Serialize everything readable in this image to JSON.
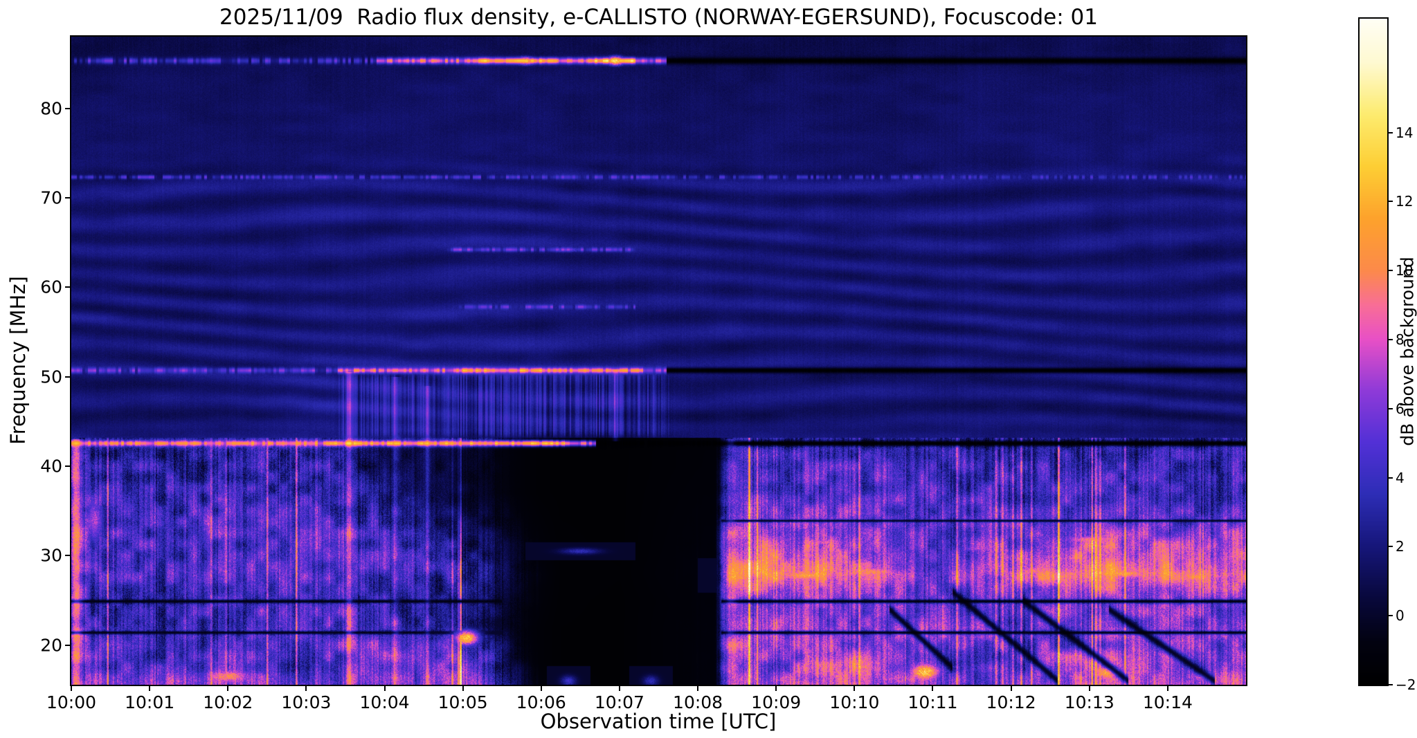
{
  "chart_data": {
    "type": "heatmap",
    "title": "2025/11/09  Radio flux density, e-CALLISTO (NORWAY-EGERSUND), Focuscode: 01",
    "date": "2025/11/09",
    "instrument": "e-CALLISTO",
    "station": "NORWAY-EGERSUND",
    "focuscode": "01",
    "xlabel": "Observation time [UTC]",
    "ylabel": "Frequency [MHz]",
    "colorbar_label": "dB above background",
    "x_range_minutes": [
      0,
      15
    ],
    "x_ticks": [
      {
        "minute": 0,
        "label": "10:00"
      },
      {
        "minute": 1,
        "label": "10:01"
      },
      {
        "minute": 2,
        "label": "10:02"
      },
      {
        "minute": 3,
        "label": "10:03"
      },
      {
        "minute": 4,
        "label": "10:04"
      },
      {
        "minute": 5,
        "label": "10:05"
      },
      {
        "minute": 6,
        "label": "10:06"
      },
      {
        "minute": 7,
        "label": "10:07"
      },
      {
        "minute": 8,
        "label": "10:08"
      },
      {
        "minute": 9,
        "label": "10:09"
      },
      {
        "minute": 10,
        "label": "10:10"
      },
      {
        "minute": 11,
        "label": "10:11"
      },
      {
        "minute": 12,
        "label": "10:12"
      },
      {
        "minute": 13,
        "label": "10:13"
      },
      {
        "minute": 14,
        "label": "10:14"
      }
    ],
    "y_range_mhz": [
      15.58,
      88.0
    ],
    "y_ticks": [
      20,
      30,
      40,
      50,
      60,
      70,
      80
    ],
    "colorbar_range": [
      -2,
      17.3
    ],
    "colorbar_ticks": [
      {
        "value": 14,
        "label": "14"
      },
      {
        "value": 12,
        "label": "12"
      },
      {
        "value": 10,
        "label": "10"
      },
      {
        "value": 8,
        "label": "8"
      },
      {
        "value": 6,
        "label": "6"
      },
      {
        "value": 4,
        "label": "4"
      },
      {
        "value": 2,
        "label": "2"
      },
      {
        "value": 0,
        "label": "0"
      },
      {
        "value": -2,
        "label": "−2"
      }
    ],
    "colormap_stops": [
      [
        -2,
        0,
        0,
        0
      ],
      [
        -0.8,
        2,
        2,
        16
      ],
      [
        0.5,
        8,
        8,
        60
      ],
      [
        2,
        22,
        22,
        122
      ],
      [
        3.5,
        45,
        45,
        182
      ],
      [
        5,
        82,
        48,
        214
      ],
      [
        6.5,
        142,
        58,
        216
      ],
      [
        8,
        232,
        80,
        198
      ],
      [
        9,
        248,
        110,
        150
      ],
      [
        10,
        252,
        138,
        74
      ],
      [
        11.5,
        253,
        162,
        44
      ],
      [
        13,
        253,
        206,
        52
      ],
      [
        14.5,
        253,
        235,
        110
      ],
      [
        16,
        254,
        249,
        208
      ],
      [
        17.3,
        255,
        254,
        245
      ]
    ],
    "heatmap_grid": {
      "t_minutes": [
        0,
        1,
        2,
        3,
        4,
        5,
        6,
        7,
        8,
        9,
        10,
        11,
        12,
        13,
        14
      ],
      "f_mhz": [
        16,
        18,
        20,
        22,
        25,
        28,
        31,
        34,
        37,
        40,
        42,
        44,
        47,
        50,
        54,
        58,
        63,
        68,
        73,
        78,
        83,
        87
      ],
      "values_db": [
        [
          6,
          6,
          6,
          5,
          5,
          7,
          0,
          -1.5,
          5,
          6,
          7,
          5,
          4,
          7,
          6
        ],
        [
          5,
          4,
          5,
          4,
          5,
          6,
          -1,
          -1.5,
          5,
          5,
          8,
          4,
          3,
          8,
          5
        ],
        [
          5,
          4,
          4,
          5,
          6,
          4,
          -1,
          -1.5,
          5,
          6,
          5,
          5,
          4,
          5,
          5
        ],
        [
          5,
          3,
          4,
          5,
          4,
          2,
          -1,
          -1.5,
          5,
          6,
          5,
          6,
          4,
          5,
          5
        ],
        [
          4,
          3,
          4,
          5,
          3,
          2,
          -0.5,
          -1.5,
          4,
          5,
          5,
          4,
          4,
          5,
          5
        ],
        [
          5,
          4,
          5,
          5,
          4,
          3,
          0,
          -1,
          6,
          9,
          8,
          5,
          7,
          9,
          8
        ],
        [
          5,
          4,
          4,
          5,
          4,
          2,
          -0.5,
          -1.5,
          5,
          7,
          6,
          4,
          5,
          7,
          6
        ],
        [
          5,
          4,
          5,
          5,
          3,
          1,
          -1,
          -1.5,
          4,
          5,
          5,
          4,
          4,
          5,
          4
        ],
        [
          4,
          3,
          3,
          4,
          2,
          0,
          -1.5,
          -1.5,
          3,
          4,
          4,
          4,
          3,
          4,
          3
        ],
        [
          4,
          3,
          3,
          4,
          1,
          0,
          -1.5,
          -1.5,
          2,
          4,
          4,
          3,
          3,
          3,
          3
        ],
        [
          3,
          2,
          3,
          3,
          1,
          0,
          -1.5,
          -1.5,
          2,
          3,
          3,
          3,
          2,
          3,
          3
        ],
        [
          1.8,
          1.6,
          1.7,
          2.2,
          2.6,
          2.6,
          2.4,
          2,
          1.6,
          1.7,
          1.6,
          1.7,
          1.6,
          1.7,
          1.6
        ],
        [
          1.7,
          1.6,
          1.7,
          2.4,
          2.8,
          2.8,
          2.6,
          2.2,
          1.6,
          1.6,
          1.7,
          1.6,
          1.7,
          1.6,
          1.7
        ],
        [
          1.8,
          1.7,
          1.8,
          2.2,
          2.6,
          2.6,
          2.4,
          2,
          1.7,
          1.8,
          1.7,
          1.8,
          1.7,
          1.8,
          1.7
        ],
        [
          1.9,
          1.8,
          1.9,
          1.9,
          2,
          2.1,
          2,
          1.9,
          1.8,
          1.9,
          1.8,
          1.9,
          1.8,
          1.9,
          1.8
        ],
        [
          1.8,
          1.9,
          1.8,
          1.9,
          2,
          2,
          1.9,
          1.8,
          1.9,
          1.8,
          1.9,
          1.8,
          1.9,
          1.8,
          1.9
        ],
        [
          1.7,
          1.8,
          1.7,
          1.8,
          1.9,
          2,
          1.9,
          1.8,
          1.7,
          1.8,
          1.7,
          1.8,
          1.7,
          1.8,
          1.7
        ],
        [
          1.9,
          2,
          1.9,
          2,
          2,
          2.1,
          2,
          1.9,
          1.9,
          2,
          1.9,
          2,
          1.9,
          2,
          1.9
        ],
        [
          1.6,
          1.7,
          1.6,
          1.7,
          1.8,
          1.8,
          1.7,
          1.6,
          1.6,
          1.7,
          1.6,
          1.7,
          1.6,
          1.9,
          1.8
        ],
        [
          1.4,
          1.5,
          1.4,
          1.5,
          1.6,
          1.6,
          1.5,
          1.4,
          1.4,
          1.5,
          1.4,
          1.5,
          1.6,
          1.7,
          1.6
        ],
        [
          1.2,
          1.3,
          1.2,
          1.3,
          1.4,
          1.5,
          1.4,
          1.2,
          1.2,
          1.3,
          1.2,
          1.3,
          1.4,
          1.5,
          1.4
        ],
        [
          0.8,
          0.9,
          0.8,
          0.9,
          1,
          1,
          0.9,
          0.8,
          0.8,
          0.9,
          0.8,
          0.9,
          1,
          1.1,
          1
        ]
      ]
    },
    "features": {
      "band_gate": [
        [
          0,
          1
        ],
        [
          5.35,
          1
        ],
        [
          6.25,
          0.07
        ],
        [
          8.22,
          0.07
        ],
        [
          8.4,
          1.12
        ],
        [
          15,
          1.12
        ]
      ],
      "vstreak_zone": {
        "t0": 3.3,
        "t1": 7.75,
        "f0": 42.9,
        "f1": 50.6,
        "amp": 3.0
      },
      "h_lines": [
        {
          "f": 85.3,
          "hw": 0.45,
          "segments": [
            [
              0,
              3.9,
              3
            ],
            [
              3.9,
              5.2,
              8
            ],
            [
              5.2,
              6.2,
              11
            ],
            [
              6.2,
              6.6,
              9
            ],
            [
              6.6,
              7.2,
              12
            ],
            [
              7.2,
              7.6,
              7
            ],
            [
              7.6,
              15,
              -2
            ]
          ]
        },
        {
          "f": 72.3,
          "hw": 0.3,
          "segments": [
            [
              0,
              7.5,
              2.8
            ],
            [
              7.5,
              15,
              2.2
            ]
          ]
        },
        {
          "f": 64.2,
          "hw": 0.3,
          "segments": [
            [
              4.8,
              7.2,
              4
            ]
          ]
        },
        {
          "f": 57.8,
          "hw": 0.3,
          "segments": [
            [
              4.9,
              7.2,
              3.5
            ]
          ]
        },
        {
          "f": 50.7,
          "hw": 0.4,
          "segments": [
            [
              0,
              3.4,
              4
            ],
            [
              3.4,
              5,
              8
            ],
            [
              5,
              6.2,
              10
            ],
            [
              6.2,
              7.3,
              9
            ],
            [
              7.3,
              7.6,
              5
            ],
            [
              7.6,
              15,
              -2
            ]
          ]
        },
        {
          "f": 42.55,
          "hw": 0.45,
          "segments": [
            [
              0,
              3.3,
              9
            ],
            [
              3.3,
              5.2,
              10
            ],
            [
              5.2,
              6.3,
              11
            ],
            [
              6.3,
              6.7,
              7
            ],
            [
              6.7,
              15,
              -2
            ]
          ]
        },
        {
          "f": 24.9,
          "hw": 0.28,
          "segments": [
            [
              0,
              5.5,
              -1
            ],
            [
              8.3,
              15,
              -1.2
            ]
          ]
        },
        {
          "f": 21.4,
          "hw": 0.25,
          "segments": [
            [
              0,
              5.5,
              -0.8
            ],
            [
              8.3,
              15,
              -1
            ]
          ]
        },
        {
          "f": 33.9,
          "hw": 0.2,
          "segments": [
            [
              8.3,
              15,
              -0.5
            ]
          ]
        }
      ],
      "v_streaks": [
        [
          0.07,
          15.6,
          43,
          4,
          0.07
        ],
        [
          3.55,
          15.6,
          50.5,
          3.5,
          0.05
        ],
        [
          4.15,
          15.6,
          50,
          2.5,
          0.05
        ],
        [
          4.55,
          15.6,
          49,
          2,
          0.04
        ],
        [
          6.95,
          42.8,
          50.8,
          2.5,
          0.04
        ],
        [
          8.42,
          15.6,
          43,
          2.6,
          0.06
        ]
      ],
      "bright_blobs": [
        [
          2.0,
          16.5,
          10,
          0.35,
          0.9
        ],
        [
          5.05,
          20.8,
          13,
          0.16,
          0.9
        ],
        [
          10.9,
          17,
          13,
          0.22,
          1.1
        ],
        [
          13.25,
          17,
          12,
          0.25,
          1.1
        ],
        [
          14.45,
          16.5,
          9,
          0.2,
          0.8
        ],
        [
          8.75,
          28,
          9,
          0.25,
          0.6
        ],
        [
          9.4,
          27.8,
          11,
          0.5,
          0.7
        ],
        [
          10.2,
          28.2,
          10,
          0.45,
          0.6
        ],
        [
          12.3,
          28.3,
          9,
          0.3,
          0.55
        ],
        [
          13.4,
          28,
          11,
          0.5,
          0.65
        ],
        [
          14.35,
          27.6,
          10,
          0.3,
          0.6
        ],
        [
          9.6,
          31.5,
          8,
          0.4,
          0.45
        ],
        [
          13.0,
          31.8,
          9,
          0.4,
          0.5
        ],
        [
          11.6,
          30.8,
          7,
          0.3,
          0.4
        ],
        [
          6.95,
          85.3,
          14,
          0.12,
          0.5
        ],
        [
          5.8,
          85.3,
          12,
          0.15,
          0.45
        ],
        [
          6.3,
          64.2,
          5,
          0.3,
          0.35
        ],
        [
          6.5,
          30.5,
          3.5,
          0.25,
          0.35
        ],
        [
          6.35,
          16,
          4,
          0.1,
          0.6
        ],
        [
          7.4,
          16,
          3.5,
          0.1,
          0.6
        ],
        [
          0.3,
          34,
          7,
          0.12,
          3
        ]
      ],
      "diag_dark": [
        [
          10.45,
          24,
          11.25,
          17.5
        ],
        [
          11.25,
          26,
          12.6,
          16
        ],
        [
          12.15,
          25,
          13.5,
          16
        ],
        [
          13.25,
          24,
          14.6,
          16
        ]
      ]
    }
  }
}
